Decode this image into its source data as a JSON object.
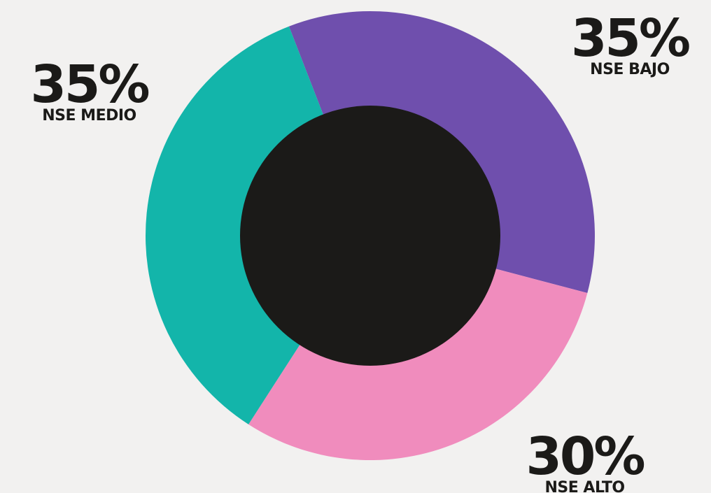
{
  "chart_data": {
    "type": "pie",
    "donut": true,
    "slices": [
      {
        "label": "NSE BAJO",
        "value": 35,
        "display": "35%",
        "color": "#6f4fad"
      },
      {
        "label": "NSE ALTO",
        "value": 30,
        "display": "30%",
        "color": "#f08cbd"
      },
      {
        "label": "NSE MEDIO",
        "value": 35,
        "display": "35%",
        "color": "#13b5aa"
      }
    ],
    "hole_color": "#1b1a18",
    "start": "top",
    "direction": "clockwise"
  },
  "colors": {
    "background": "#f2f1f0",
    "text": "#1b1a18"
  }
}
